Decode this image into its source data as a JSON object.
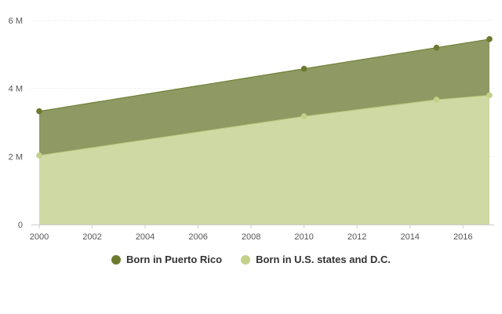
{
  "chart_data": {
    "type": "area",
    "stacked": true,
    "title": "",
    "xlabel": "",
    "ylabel": "",
    "x": [
      2000,
      2010,
      2015,
      2017
    ],
    "xlim": [
      2000,
      2017
    ],
    "x_ticks": [
      "2000",
      "2002",
      "2004",
      "2006",
      "2008",
      "2010",
      "2012",
      "2014",
      "2016"
    ],
    "ylim": [
      0,
      6
    ],
    "y_ticks": [
      "0",
      "2 M",
      "4 M",
      "6 M"
    ],
    "grid": "horizontal",
    "legend": "bottom",
    "series": [
      {
        "name": "Born in U.S. states and D.C.",
        "values": [
          2.03,
          3.18,
          3.67,
          3.8
        ],
        "color": "#cfd9a3",
        "marker_color": "#c2d08a"
      },
      {
        "name": "Born in Puerto Rico",
        "values": [
          1.3,
          1.4,
          1.53,
          1.65
        ],
        "cumulative": [
          3.33,
          4.58,
          5.2,
          5.45
        ],
        "color": "#8e9963",
        "marker_color": "#6b7a2e"
      }
    ],
    "legend_order": [
      "Born in Puerto Rico",
      "Born in U.S. states and D.C."
    ]
  }
}
